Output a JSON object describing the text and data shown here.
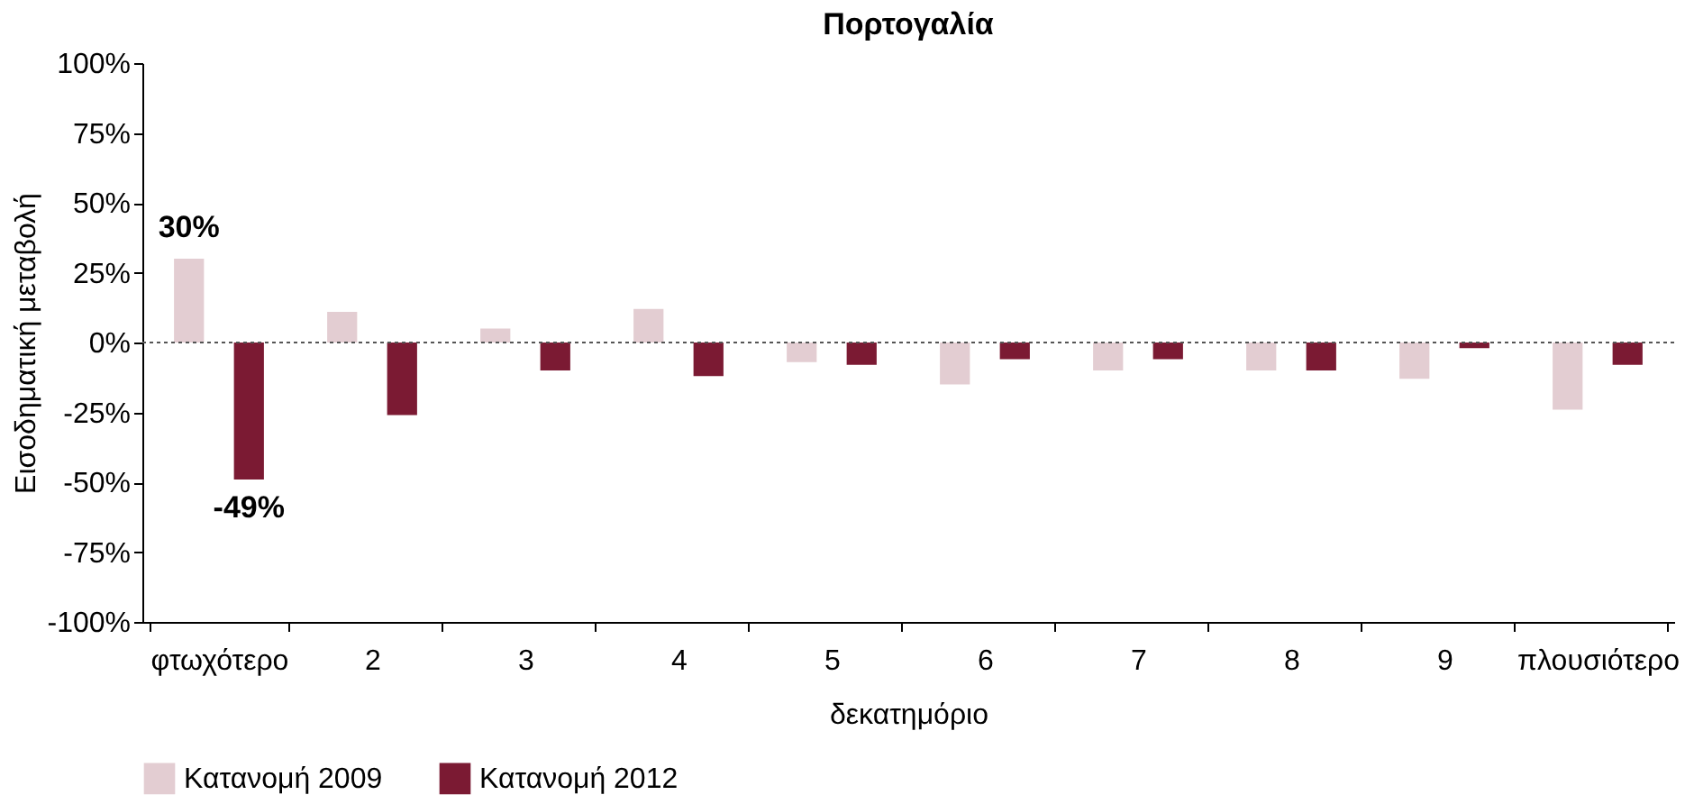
{
  "chart_data": {
    "type": "bar",
    "title": "Πορτογαλία",
    "xlabel": "δεκατημόριο",
    "ylabel": "Εισοδηματική μεταβολή",
    "categories": [
      "φτωχότερο",
      "2",
      "3",
      "4",
      "5",
      "6",
      "7",
      "8",
      "9",
      "πλουσιότερο"
    ],
    "series": [
      {
        "name": "Κατανομή 2009",
        "color": "#e3cdd2",
        "values": [
          30,
          11,
          5,
          12,
          -7,
          -15,
          -10,
          -10,
          -13,
          -24
        ],
        "value_labels": [
          "30%",
          null,
          null,
          null,
          null,
          null,
          null,
          null,
          null,
          null
        ]
      },
      {
        "name": "Κατανομή 2012",
        "color": "#7b1a33",
        "values": [
          -49,
          -26,
          -10,
          -12,
          -8,
          -6,
          -6,
          -10,
          -2,
          -8
        ],
        "value_labels": [
          "-49%",
          null,
          null,
          null,
          null,
          null,
          null,
          null,
          null,
          null
        ]
      }
    ],
    "ylim": [
      -100,
      100
    ],
    "yticks": [
      {
        "value": -100,
        "label": "-100%"
      },
      {
        "value": -75,
        "label": "-75%"
      },
      {
        "value": -50,
        "label": "-50%"
      },
      {
        "value": -25,
        "label": "-25%"
      },
      {
        "value": 0,
        "label": "0%"
      },
      {
        "value": 25,
        "label": "25%"
      },
      {
        "value": 50,
        "label": "50%"
      },
      {
        "value": 75,
        "label": "75%"
      },
      {
        "value": 100,
        "label": "100%"
      }
    ],
    "ref_lines": [
      {
        "axis": "y",
        "value": 0,
        "line_style": "dotted",
        "color": "#555555"
      }
    ],
    "grid": false,
    "legend": "bottom"
  }
}
